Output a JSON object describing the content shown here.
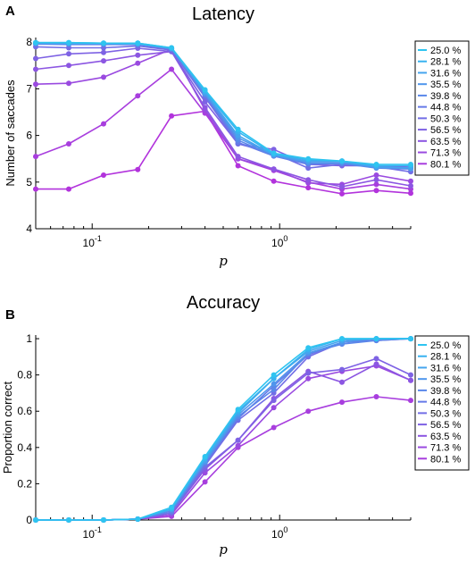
{
  "chart_data": [
    {
      "panel_label": "A",
      "type": "line",
      "title": "Latency",
      "xlabel": "p",
      "ylabel": "Number of saccades",
      "xscale": "log",
      "xlim": [
        0.05,
        5.0
      ],
      "ylim": [
        4,
        8.1
      ],
      "yticks": [
        "4",
        "5",
        "6",
        "7",
        "8"
      ],
      "xtick_labels": [
        {
          "value": 0.1,
          "base": "10",
          "exp": "-1"
        },
        {
          "value": 1,
          "base": "10",
          "exp": "0"
        }
      ],
      "legend_position": "right",
      "x": [
        0.05,
        0.075,
        0.115,
        0.175,
        0.265,
        0.4,
        0.6,
        0.93,
        1.42,
        2.15,
        3.28,
        5.0
      ],
      "series": [
        {
          "name": "25.0 %",
          "values": [
            7.99,
            7.99,
            7.98,
            7.98,
            7.88,
            6.98,
            6.13,
            5.62,
            5.5,
            5.45,
            5.38,
            5.38
          ]
        },
        {
          "name": "28.1 %",
          "values": [
            7.99,
            7.99,
            7.98,
            7.98,
            7.88,
            6.95,
            6.08,
            5.6,
            5.48,
            5.45,
            5.35,
            5.35
          ]
        },
        {
          "name": "31.6 %",
          "values": [
            7.98,
            7.97,
            7.97,
            7.96,
            7.87,
            6.92,
            6.0,
            5.58,
            5.45,
            5.45,
            5.32,
            5.3
          ]
        },
        {
          "name": "35.5 %",
          "values": [
            7.98,
            7.97,
            7.97,
            7.97,
            7.86,
            6.9,
            5.95,
            5.58,
            5.42,
            5.42,
            5.32,
            5.3
          ]
        },
        {
          "name": "39.8 %",
          "values": [
            7.97,
            7.96,
            7.96,
            7.96,
            7.86,
            6.88,
            5.9,
            5.56,
            5.4,
            5.4,
            5.3,
            5.28
          ]
        },
        {
          "name": "44.8 %",
          "values": [
            7.96,
            7.95,
            7.95,
            7.95,
            7.85,
            6.86,
            5.85,
            5.56,
            5.38,
            5.4,
            5.32,
            5.3
          ]
        },
        {
          "name": "50.3 %",
          "values": [
            7.9,
            7.88,
            7.88,
            7.92,
            7.83,
            6.82,
            5.82,
            5.62,
            5.3,
            5.38,
            5.33,
            5.22
          ]
        },
        {
          "name": "56.5 %",
          "values": [
            7.65,
            7.75,
            7.78,
            7.87,
            7.8,
            6.72,
            5.82,
            5.7,
            5.38,
            5.35,
            5.35,
            5.32
          ]
        },
        {
          "name": "63.5 %",
          "values": [
            7.42,
            7.5,
            7.6,
            7.72,
            7.8,
            6.6,
            5.55,
            5.28,
            5.05,
            4.9,
            5.05,
            4.92
          ]
        },
        {
          "name": "71.3 %",
          "values": [
            7.1,
            7.12,
            7.25,
            7.55,
            7.85,
            6.55,
            5.5,
            5.28,
            4.98,
            4.95,
            5.15,
            5.02
          ]
        },
        {
          "name": "80.1 %",
          "values": [
            5.55,
            5.82,
            6.25,
            6.85,
            7.42,
            6.48,
            5.5,
            5.25,
            5.0,
            4.85,
            4.95,
            4.85
          ]
        },
        {
          "name": "",
          "values": [
            4.85,
            4.85,
            5.15,
            5.27,
            6.42,
            6.52,
            5.35,
            5.02,
            4.88,
            4.75,
            4.82,
            4.76
          ]
        }
      ]
    },
    {
      "panel_label": "B",
      "type": "line",
      "title": "Accuracy",
      "xlabel": "p",
      "ylabel": "Proportion correct",
      "xscale": "log",
      "xlim": [
        0.05,
        5.0
      ],
      "ylim": [
        0,
        1.02
      ],
      "yticks": [
        "0",
        "0.2",
        "0.4",
        "0.6",
        "0.8",
        "1"
      ],
      "xtick_labels": [
        {
          "value": 0.1,
          "base": "10",
          "exp": "-1"
        },
        {
          "value": 1,
          "base": "10",
          "exp": "0"
        }
      ],
      "legend_position": "right",
      "x": [
        0.05,
        0.075,
        0.115,
        0.175,
        0.265,
        0.4,
        0.6,
        0.93,
        1.42,
        2.15,
        3.28,
        5.0
      ],
      "series": [
        {
          "name": "25.0 %",
          "values": [
            0,
            0,
            0,
            0.005,
            0.07,
            0.35,
            0.61,
            0.8,
            0.95,
            1.0,
            1.0,
            1.0
          ]
        },
        {
          "name": "28.1 %",
          "values": [
            0,
            0,
            0,
            0.005,
            0.06,
            0.34,
            0.6,
            0.78,
            0.94,
            1.0,
            1.0,
            1.0
          ]
        },
        {
          "name": "31.6 %",
          "values": [
            0,
            0,
            0,
            0.005,
            0.06,
            0.33,
            0.59,
            0.78,
            0.93,
            0.99,
            1.0,
            1.0
          ]
        },
        {
          "name": "35.5 %",
          "values": [
            0,
            0,
            0,
            0.005,
            0.06,
            0.32,
            0.58,
            0.75,
            0.92,
            0.98,
            1.0,
            1.0
          ]
        },
        {
          "name": "39.8 %",
          "values": [
            0,
            0,
            0,
            0.005,
            0.05,
            0.32,
            0.57,
            0.72,
            0.92,
            0.97,
            0.99,
            1.0
          ]
        },
        {
          "name": "44.8 %",
          "values": [
            0,
            0,
            0,
            0.005,
            0.05,
            0.31,
            0.56,
            0.74,
            0.91,
            0.98,
            1.0,
            1.0
          ]
        },
        {
          "name": "50.3 %",
          "values": [
            0,
            0,
            0,
            0.005,
            0.04,
            0.3,
            0.55,
            0.7,
            0.9,
            0.98,
            0.99,
            1.0
          ]
        },
        {
          "name": "56.5 %",
          "values": [
            0,
            0,
            0,
            0.005,
            0.04,
            0.29,
            0.44,
            0.66,
            0.81,
            0.83,
            0.89,
            0.8
          ]
        },
        {
          "name": "63.5 %",
          "values": [
            0,
            0,
            0,
            0.005,
            0.04,
            0.28,
            0.44,
            0.67,
            0.82,
            0.76,
            0.86,
            0.77
          ]
        },
        {
          "name": "71.3 %",
          "values": [
            0,
            0,
            0,
            0.005,
            0.03,
            0.26,
            0.41,
            0.62,
            0.78,
            0.82,
            0.85,
            0.77
          ]
        },
        {
          "name": "80.1 %",
          "values": [
            0,
            0,
            0,
            0.005,
            0.02,
            0.21,
            0.4,
            0.51,
            0.6,
            0.65,
            0.68,
            0.66
          ]
        }
      ]
    }
  ],
  "series_colors": [
    "#2ec4f0",
    "#38b2f0",
    "#45a4ee",
    "#4f96ec",
    "#5a88ea",
    "#667ae8",
    "#726ee6",
    "#7e62e4",
    "#8c56e2",
    "#9a4ae0",
    "#a83ede",
    "#b233dc"
  ]
}
